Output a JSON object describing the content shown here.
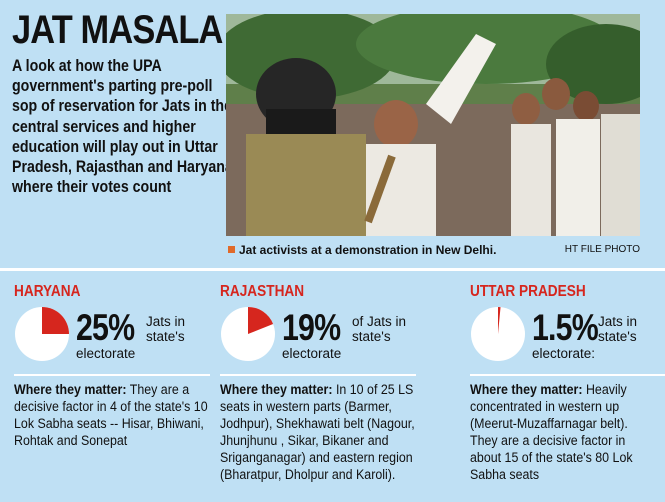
{
  "title": "JAT MASALA",
  "intro": "A look at how the UPA government's parting pre-poll sop of reservation for Jats in the central services and higher education will play out in Uttar Pradesh, Rajasthan and Haryana where their votes count",
  "photo": {
    "caption": "Jat activists at a demonstration in New Delhi.",
    "credit": "HT FILE PHOTO"
  },
  "states": [
    {
      "name": "HARYANA",
      "percent": 25,
      "percent_text": "25%",
      "label_line1": "Jats in",
      "label_line2": "state's",
      "label_line3": "electorate",
      "matter_label": "Where they matter:",
      "matter_text": "They are a decisive factor in 4 of the state's 10 Lok Sabha seats -- Hisar, Bhiwani, Rohtak and Sonepat"
    },
    {
      "name": "RAJASTHAN",
      "percent": 19,
      "percent_text": "19%",
      "label_line1": "of Jats in",
      "label_line2": "state's",
      "label_line3": "electorate",
      "matter_label": "Where they matter:",
      "matter_text": "In 10 of 25 LS seats in western parts (Barmer, Jodhpur), Shekhawati belt (Nagour, Jhunjhunu , Sikar, Bikaner and Sriganganagar) and eastern region (Bharatpur, Dholpur and Karoli)."
    },
    {
      "name": "UTTAR PRADESH",
      "percent": 1.5,
      "percent_text": "1.5%",
      "label_line1": "Jats in",
      "label_line2": "state's",
      "label_line3": "electorate:",
      "matter_label": "Where they matter:",
      "matter_text": "Heavily concentrated in western up (Meerut-Muzaffarnagar belt). They are a decisive factor in about 15 of the state's 80 Lok Sabha seats"
    }
  ],
  "colors": {
    "background": "#bfe0f4",
    "accent": "#d6261e",
    "pie_empty": "#ffffff",
    "pie_fill": "#d6261e"
  }
}
